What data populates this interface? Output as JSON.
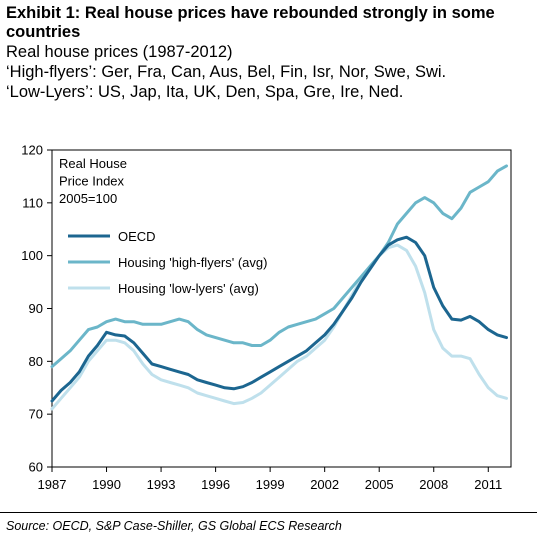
{
  "header": {
    "title": "Exhibit 1: Real house prices have rebounded strongly in some countries",
    "subtitle_lines": [
      "Real house prices (1987-2012)",
      "‘High-flyers’: Ger, Fra, Can, Aus, Bel, Fin, Isr, Nor, Swe, Swi.",
      "‘Low-Lyers’: US, Jap, Ita, UK, Den, Spa, Gre, Ire, Ned."
    ]
  },
  "source": "Source: OECD, S&P Case-Shiller, GS Global ECS Research",
  "chart_data": {
    "type": "line",
    "annotation": [
      "Real House",
      "Price Index",
      "2005=100"
    ],
    "xlim": [
      1987,
      2012.25
    ],
    "ylim": [
      60,
      120
    ],
    "xticks": [
      1987,
      1990,
      1993,
      1996,
      1999,
      2002,
      2005,
      2008,
      2011
    ],
    "yticks": [
      60,
      70,
      80,
      90,
      100,
      110,
      120
    ],
    "grid": false,
    "legend_position": "upper-left",
    "series": [
      {
        "name": "OECD",
        "color": "#1c6690",
        "points": [
          [
            1987.0,
            72.5
          ],
          [
            1987.5,
            74.5
          ],
          [
            1988.0,
            76.0
          ],
          [
            1988.5,
            78.0
          ],
          [
            1989.0,
            81.0
          ],
          [
            1989.5,
            83.0
          ],
          [
            1990.0,
            85.5
          ],
          [
            1990.5,
            85.0
          ],
          [
            1991.0,
            84.8
          ],
          [
            1991.5,
            83.5
          ],
          [
            1992.0,
            81.5
          ],
          [
            1992.5,
            79.5
          ],
          [
            1993.0,
            79.0
          ],
          [
            1993.5,
            78.5
          ],
          [
            1994.0,
            78.0
          ],
          [
            1994.5,
            77.5
          ],
          [
            1995.0,
            76.5
          ],
          [
            1995.5,
            76.0
          ],
          [
            1996.0,
            75.5
          ],
          [
            1996.5,
            75.0
          ],
          [
            1997.0,
            74.8
          ],
          [
            1997.5,
            75.2
          ],
          [
            1998.0,
            76.0
          ],
          [
            1998.5,
            77.0
          ],
          [
            1999.0,
            78.0
          ],
          [
            1999.5,
            79.0
          ],
          [
            2000.0,
            80.0
          ],
          [
            2000.5,
            81.0
          ],
          [
            2001.0,
            82.0
          ],
          [
            2001.5,
            83.5
          ],
          [
            2002.0,
            85.0
          ],
          [
            2002.5,
            87.0
          ],
          [
            2003.0,
            89.5
          ],
          [
            2003.5,
            92.0
          ],
          [
            2004.0,
            95.0
          ],
          [
            2004.5,
            97.5
          ],
          [
            2005.0,
            100.0
          ],
          [
            2005.5,
            102.0
          ],
          [
            2006.0,
            103.0
          ],
          [
            2006.5,
            103.5
          ],
          [
            2007.0,
            102.5
          ],
          [
            2007.5,
            100.0
          ],
          [
            2008.0,
            94.0
          ],
          [
            2008.5,
            90.5
          ],
          [
            2009.0,
            88.0
          ],
          [
            2009.5,
            87.8
          ],
          [
            2010.0,
            88.5
          ],
          [
            2010.5,
            87.5
          ],
          [
            2011.0,
            86.0
          ],
          [
            2011.5,
            85.0
          ],
          [
            2012.0,
            84.5
          ]
        ]
      },
      {
        "name": "Housing 'high-flyers' (avg)",
        "color": "#6bb6c9",
        "points": [
          [
            1987.0,
            79.0
          ],
          [
            1987.5,
            80.5
          ],
          [
            1988.0,
            82.0
          ],
          [
            1988.5,
            84.0
          ],
          [
            1989.0,
            86.0
          ],
          [
            1989.5,
            86.5
          ],
          [
            1990.0,
            87.5
          ],
          [
            1990.5,
            88.0
          ],
          [
            1991.0,
            87.5
          ],
          [
            1991.5,
            87.5
          ],
          [
            1992.0,
            87.0
          ],
          [
            1992.5,
            87.0
          ],
          [
            1993.0,
            87.0
          ],
          [
            1993.5,
            87.5
          ],
          [
            1994.0,
            88.0
          ],
          [
            1994.5,
            87.5
          ],
          [
            1995.0,
            86.0
          ],
          [
            1995.5,
            85.0
          ],
          [
            1996.0,
            84.5
          ],
          [
            1996.5,
            84.0
          ],
          [
            1997.0,
            83.5
          ],
          [
            1997.5,
            83.5
          ],
          [
            1998.0,
            83.0
          ],
          [
            1998.5,
            83.0
          ],
          [
            1999.0,
            84.0
          ],
          [
            1999.5,
            85.5
          ],
          [
            2000.0,
            86.5
          ],
          [
            2000.5,
            87.0
          ],
          [
            2001.0,
            87.5
          ],
          [
            2001.5,
            88.0
          ],
          [
            2002.0,
            89.0
          ],
          [
            2002.5,
            90.0
          ],
          [
            2003.0,
            92.0
          ],
          [
            2003.5,
            94.0
          ],
          [
            2004.0,
            96.0
          ],
          [
            2004.5,
            98.0
          ],
          [
            2005.0,
            100.0
          ],
          [
            2005.5,
            102.5
          ],
          [
            2006.0,
            106.0
          ],
          [
            2006.5,
            108.0
          ],
          [
            2007.0,
            110.0
          ],
          [
            2007.5,
            111.0
          ],
          [
            2008.0,
            110.0
          ],
          [
            2008.5,
            108.0
          ],
          [
            2009.0,
            107.0
          ],
          [
            2009.5,
            109.0
          ],
          [
            2010.0,
            112.0
          ],
          [
            2010.5,
            113.0
          ],
          [
            2011.0,
            114.0
          ],
          [
            2011.5,
            116.0
          ],
          [
            2012.0,
            117.0
          ]
        ]
      },
      {
        "name": "Housing 'low-lyers' (avg)",
        "color": "#bfe0ec",
        "points": [
          [
            1987.0,
            71.0
          ],
          [
            1987.5,
            73.0
          ],
          [
            1988.0,
            75.0
          ],
          [
            1988.5,
            77.0
          ],
          [
            1989.0,
            80.0
          ],
          [
            1989.5,
            82.0
          ],
          [
            1990.0,
            84.0
          ],
          [
            1990.5,
            84.0
          ],
          [
            1991.0,
            83.5
          ],
          [
            1991.5,
            82.0
          ],
          [
            1992.0,
            79.5
          ],
          [
            1992.5,
            77.5
          ],
          [
            1993.0,
            76.5
          ],
          [
            1993.5,
            76.0
          ],
          [
            1994.0,
            75.5
          ],
          [
            1994.5,
            75.0
          ],
          [
            1995.0,
            74.0
          ],
          [
            1995.5,
            73.5
          ],
          [
            1996.0,
            73.0
          ],
          [
            1996.5,
            72.5
          ],
          [
            1997.0,
            72.0
          ],
          [
            1997.5,
            72.2
          ],
          [
            1998.0,
            73.0
          ],
          [
            1998.5,
            74.0
          ],
          [
            1999.0,
            75.5
          ],
          [
            1999.5,
            77.0
          ],
          [
            2000.0,
            78.5
          ],
          [
            2000.5,
            80.0
          ],
          [
            2001.0,
            81.0
          ],
          [
            2001.5,
            82.5
          ],
          [
            2002.0,
            84.0
          ],
          [
            2002.5,
            86.5
          ],
          [
            2003.0,
            89.5
          ],
          [
            2003.5,
            92.5
          ],
          [
            2004.0,
            95.5
          ],
          [
            2004.5,
            98.0
          ],
          [
            2005.0,
            100.0
          ],
          [
            2005.5,
            101.5
          ],
          [
            2006.0,
            102.0
          ],
          [
            2006.5,
            101.0
          ],
          [
            2007.0,
            98.0
          ],
          [
            2007.5,
            93.0
          ],
          [
            2008.0,
            86.0
          ],
          [
            2008.5,
            82.5
          ],
          [
            2009.0,
            81.0
          ],
          [
            2009.5,
            81.0
          ],
          [
            2010.0,
            80.5
          ],
          [
            2010.5,
            77.5
          ],
          [
            2011.0,
            75.0
          ],
          [
            2011.5,
            73.5
          ],
          [
            2012.0,
            73.0
          ]
        ]
      }
    ]
  }
}
